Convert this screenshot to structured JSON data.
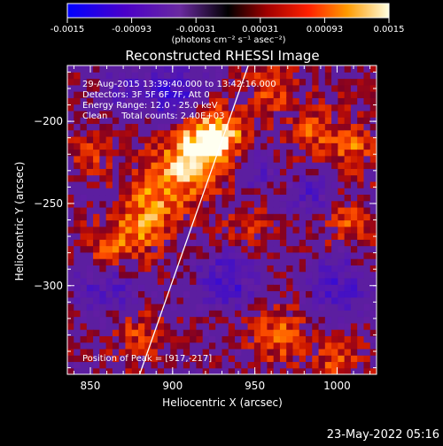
{
  "colorbar": {
    "ticks": [
      "-0.0015",
      "-0.00093",
      "-0.00031",
      "0.00031",
      "0.00093",
      "0.0015"
    ],
    "unit_label": "(photons cm⁻² s⁻¹ asec⁻²)",
    "range": [
      -0.0015,
      0.0015
    ]
  },
  "image": {
    "title": "Reconstructed RHESSI Image",
    "info_lines": [
      "29-Aug-2015 13:39:40.000 to 13:42:16.000",
      "Detectors: 3F 5F 6F 7F, Att 0",
      "Energy Range: 12.0 - 25.0 keV",
      "Clean     Total counts: 2.40E+03"
    ],
    "peak_text": "Position of Peak = [917,-217]",
    "footer_date": "23-May-2022 05:16"
  },
  "chart_data": {
    "type": "heatmap",
    "title": "Reconstructed RHESSI Image",
    "xlabel": "Heliocentric X (arcsec)",
    "ylabel": "Heliocentric Y (arcsec)",
    "xlim": [
      836,
      1024
    ],
    "ylim": [
      -354,
      -166
    ],
    "x_ticks": [
      850,
      900,
      950,
      1000
    ],
    "y_ticks": [
      -200,
      -250,
      -300
    ],
    "peak": [
      917,
      -217
    ],
    "blobs": [
      {
        "x": 917,
        "y": -217,
        "amp": 1.0,
        "w": 14
      },
      {
        "x": 930,
        "y": -205,
        "amp": 0.55,
        "w": 10
      },
      {
        "x": 895,
        "y": -240,
        "amp": 0.6,
        "w": 14
      },
      {
        "x": 880,
        "y": -265,
        "amp": 0.55,
        "w": 12
      },
      {
        "x": 860,
        "y": -280,
        "amp": 0.5,
        "w": 10
      },
      {
        "x": 960,
        "y": -180,
        "amp": 0.45,
        "w": 10
      },
      {
        "x": 985,
        "y": -205,
        "amp": 0.45,
        "w": 10
      },
      {
        "x": 1010,
        "y": -215,
        "amp": 0.5,
        "w": 10
      },
      {
        "x": 1005,
        "y": -260,
        "amp": 0.45,
        "w": 10
      },
      {
        "x": 965,
        "y": -330,
        "amp": 0.5,
        "w": 12
      },
      {
        "x": 1000,
        "y": -345,
        "amp": 0.45,
        "w": 10
      },
      {
        "x": 880,
        "y": -330,
        "amp": 0.4,
        "w": 10
      },
      {
        "x": 850,
        "y": -220,
        "amp": 0.35,
        "w": 8
      },
      {
        "x": 945,
        "y": -265,
        "amp": 0.35,
        "w": 10
      },
      {
        "x": 900,
        "y": -185,
        "amp": -0.7,
        "w": 12
      },
      {
        "x": 860,
        "y": -300,
        "amp": -0.5,
        "w": 12
      },
      {
        "x": 935,
        "y": -295,
        "amp": -0.6,
        "w": 12
      },
      {
        "x": 985,
        "y": -245,
        "amp": -0.4,
        "w": 10
      },
      {
        "x": 1000,
        "y": -300,
        "amp": -0.55,
        "w": 12
      },
      {
        "x": 950,
        "y": -230,
        "amp": -0.35,
        "w": 8
      },
      {
        "x": 870,
        "y": -180,
        "amp": -0.35,
        "w": 8
      }
    ],
    "limb_line": [
      [
        880,
        -354
      ],
      [
        946,
        -166
      ]
    ]
  }
}
